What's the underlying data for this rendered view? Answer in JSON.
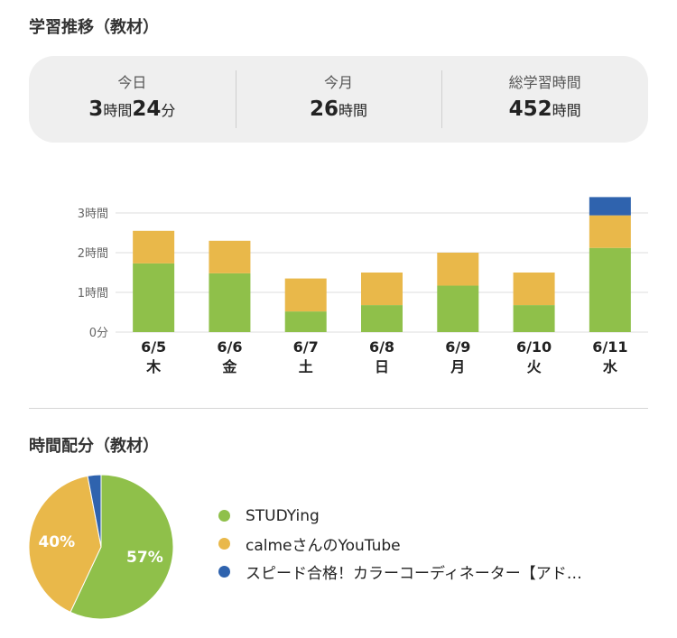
{
  "header": {
    "title": "学習推移（教材）"
  },
  "stats": [
    {
      "label": "今日",
      "parts": [
        {
          "num": "3",
          "unit": "時間"
        },
        {
          "num": "24",
          "unit": "分"
        }
      ]
    },
    {
      "label": "今月",
      "parts": [
        {
          "num": "26",
          "unit": "時間"
        }
      ]
    },
    {
      "label": "総学習時間",
      "parts": [
        {
          "num": "452",
          "unit": "時間"
        }
      ]
    }
  ],
  "colors": {
    "studying": "#8fc04a",
    "youtube": "#e9b84a",
    "speed": "#2f63ae",
    "grid": "#dcdcdc",
    "axis_text": "#666666"
  },
  "chart_data": [
    {
      "type": "bar",
      "stacked": true,
      "categories": [
        "6/5",
        "6/6",
        "6/7",
        "6/8",
        "6/9",
        "6/10",
        "6/11"
      ],
      "weekdays": [
        "木",
        "金",
        "土",
        "日",
        "月",
        "火",
        "水"
      ],
      "y_ticks": [
        "0分",
        "1時間",
        "2時間",
        "3時間"
      ],
      "ylim": [
        0,
        3.3
      ],
      "grid": true,
      "unit": "hours",
      "series": [
        {
          "name": "STUDYing",
          "color": "#8fc04a",
          "values": [
            1.73,
            1.48,
            0.52,
            0.68,
            1.17,
            0.68,
            2.12
          ]
        },
        {
          "name": "calmeさんのYouTube",
          "color": "#e9b84a",
          "values": [
            0.82,
            0.82,
            0.83,
            0.82,
            0.83,
            0.82,
            0.82
          ]
        },
        {
          "name": "スピード合格！カラーコーディネーター【アド…",
          "color": "#2f63ae",
          "values": [
            0,
            0,
            0,
            0,
            0,
            0,
            0.46
          ]
        }
      ]
    },
    {
      "type": "pie",
      "title": "時間配分（教材）",
      "slices": [
        {
          "name": "STUDYing",
          "value": 57,
          "label": "57%",
          "color": "#8fc04a"
        },
        {
          "name": "calmeさんのYouTube",
          "value": 40,
          "label": "40%",
          "color": "#e9b84a"
        },
        {
          "name": "スピード合格！カラーコーディネーター【アド…",
          "value": 3,
          "label": "",
          "color": "#2f63ae"
        }
      ]
    }
  ]
}
